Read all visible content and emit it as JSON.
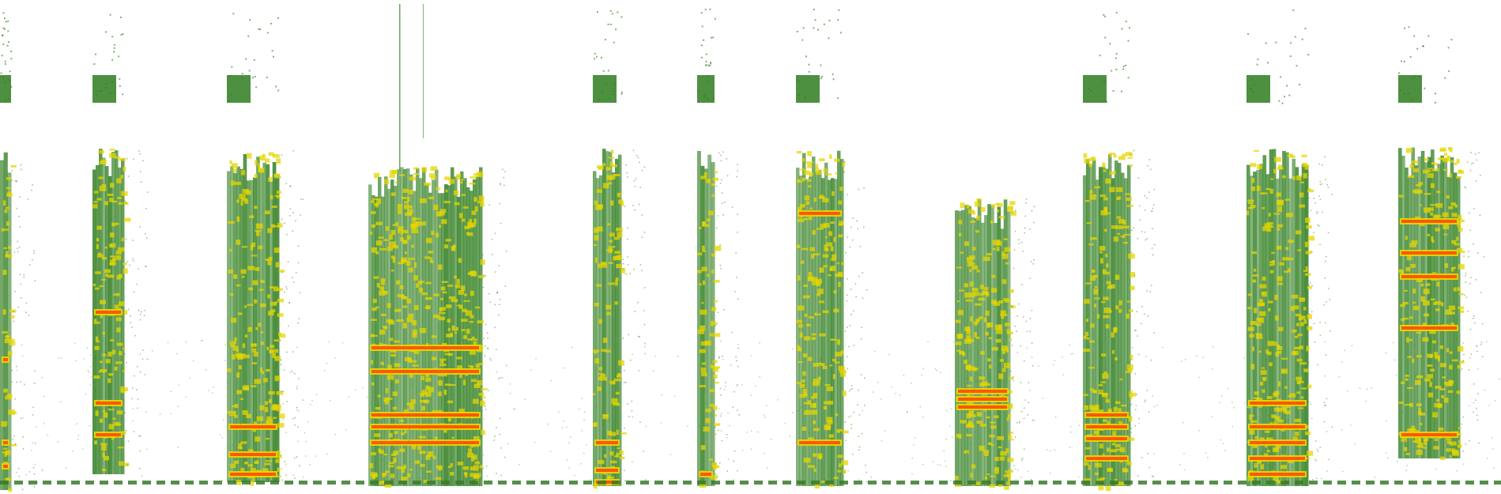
{
  "image": {
    "kind": "spectrogram",
    "background": "#ffffff",
    "palette": {
      "low": "#2e7d1e",
      "mid": "#e6d600",
      "high": "#ff4a00",
      "baseline": "#3a7a2a"
    }
  }
}
